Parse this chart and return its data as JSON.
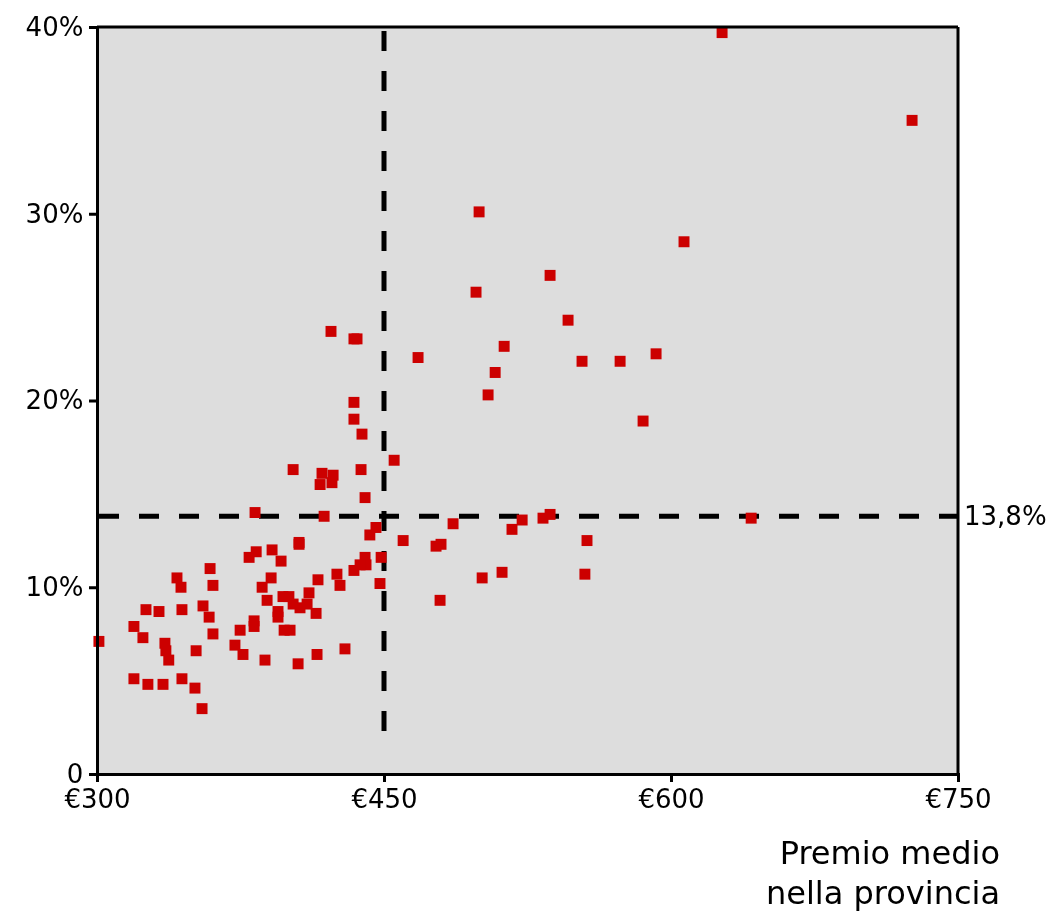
{
  "chart_data": {
    "type": "scatter",
    "xlabel": "Premio medio nella provincia",
    "marker": "square",
    "grid": false,
    "xlim": [
      300,
      750
    ],
    "xticks": [
      {
        "value": 300,
        "label": "€300"
      },
      {
        "value": 450,
        "label": "€450"
      },
      {
        "value": 600,
        "label": "€600"
      },
      {
        "value": 750,
        "label": "€750"
      }
    ],
    "ylim": [
      0,
      40
    ],
    "yticks": [
      {
        "value": 0,
        "label": "0"
      },
      {
        "value": 10,
        "label": "10%"
      },
      {
        "value": 20,
        "label": "20%"
      },
      {
        "value": 30,
        "label": "30%"
      },
      {
        "value": 40,
        "label": "40%"
      }
    ],
    "ref_lines": [
      {
        "axis": "x",
        "value": 450,
        "color": "#000000",
        "line_style": "dashed"
      },
      {
        "axis": "y",
        "value": 13.8,
        "label": "13,8%",
        "color": "#000000",
        "line_style": "dashed"
      }
    ],
    "series": [
      {
        "color": "#cc0000",
        "x": [
          626.7,
          726,
          499.7,
          606.8,
          536.8,
          498.1,
          546.2,
          422.3,
          434.3,
          435.9,
          512.8,
          467.8,
          592.2,
          553.5,
          573.4,
          508.1,
          504.4,
          434.3,
          585.4,
          434.3,
          438.5,
          455.3,
          402.5,
          438,
          417.6,
          423.4,
          422.8,
          416.6,
          440.1,
          382.6,
          418.7,
          486.1,
          536.8,
          533.1,
          522.2,
          641.9,
          516.9,
          445.8,
          442.6,
          460,
          479.8,
          477.2,
          556.1,
          405.6,
          405.6,
          359.1,
          448.5,
          440.1,
          440.6,
          437.5,
          379.5,
          383.2,
          391.5,
          396.2,
          434.3,
          425.4,
          427,
          415.5,
          391,
          360.6,
          386.3,
          341.8,
          343.9,
          447.9,
          501.3,
          511.7,
          555,
          479.3,
          388.9,
          397.2,
          400.3,
          410.8,
          402.5,
          406.1,
          409.8,
          414.5,
          394.6,
          394.6,
          325.6,
          332.4,
          344.4,
          355.4,
          358.6,
          382.1,
          382.1,
          374.8,
          360.6,
          397.8,
          400.9,
          319.3,
          324,
          301,
          335.5,
          336,
          337.5,
          372.1,
          376.3,
          351.8,
          387.8,
          405.1,
          415,
          429.6,
          319.3,
          326.6,
          334.5,
          344.4,
          351.2,
          354.9
        ],
        "values": [
          39.7,
          35,
          30.1,
          28.5,
          26.7,
          25.8,
          24.3,
          23.7,
          23.3,
          23.3,
          22.9,
          22.3,
          22.5,
          22.1,
          22.1,
          21.5,
          20.3,
          19.9,
          18.9,
          19,
          18.2,
          16.8,
          16.3,
          16.3,
          16.1,
          16,
          15.6,
          15.5,
          14.8,
          14,
          13.8,
          13.4,
          13.9,
          13.7,
          13.6,
          13.7,
          13.1,
          13.2,
          12.8,
          12.5,
          12.3,
          12.2,
          12.5,
          12.4,
          12.3,
          11,
          11.6,
          11.6,
          11.2,
          11.2,
          11.6,
          11.9,
          12,
          11.4,
          10.9,
          10.7,
          10.1,
          10.4,
          10.5,
          10.1,
          10,
          10.5,
          10,
          10.2,
          10.5,
          10.8,
          10.7,
          9.3,
          9.3,
          9.5,
          9.5,
          9.7,
          9.1,
          8.9,
          9.1,
          8.6,
          8.7,
          8.4,
          8.8,
          8.7,
          8.8,
          9,
          8.4,
          8.2,
          7.9,
          7.7,
          7.5,
          7.7,
          7.7,
          7.9,
          7.3,
          7.1,
          7,
          6.6,
          6.1,
          6.9,
          6.4,
          6.6,
          6.1,
          5.9,
          6.4,
          6.7,
          5.1,
          4.8,
          4.8,
          5.1,
          4.6,
          3.5
        ]
      }
    ]
  }
}
